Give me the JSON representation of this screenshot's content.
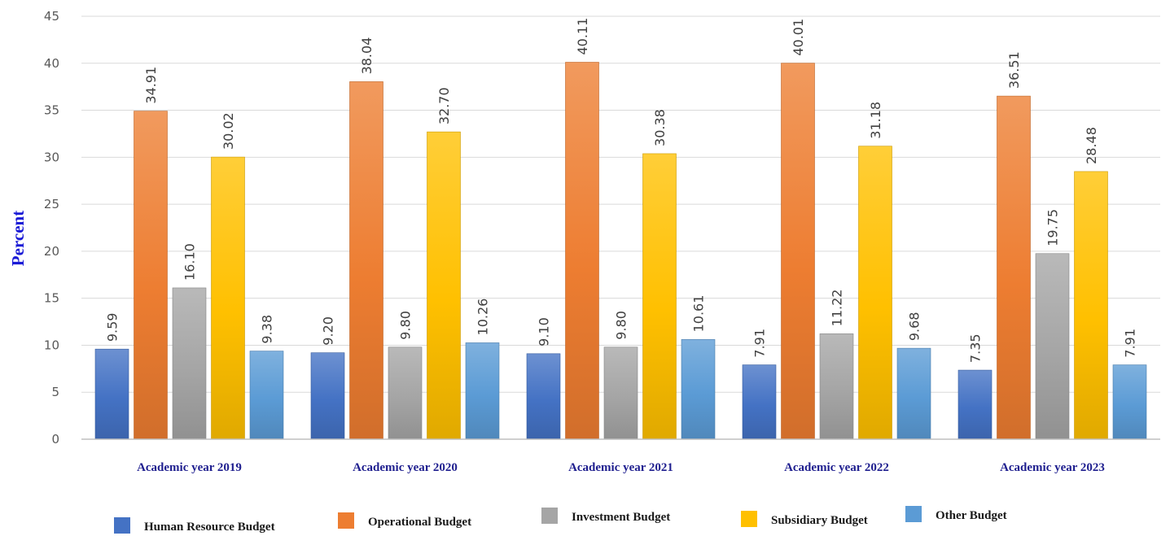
{
  "chart_data": {
    "type": "bar",
    "title": "",
    "xlabel": "",
    "ylabel": "Percent",
    "ylim": [
      0,
      45
    ],
    "yticks": [
      0,
      5,
      10,
      15,
      20,
      25,
      30,
      35,
      40,
      45
    ],
    "grid": true,
    "legend_position": "bottom",
    "categories": [
      "Academic year 2019",
      "Academic year 2020",
      "Academic year 2021",
      "Academic year 2022",
      "Academic year 2023"
    ],
    "series": [
      {
        "name": "Human Resource Budget",
        "color": "#4472c4",
        "values": [
          9.59,
          9.2,
          9.1,
          7.91,
          7.35
        ],
        "labels": [
          "9.59",
          "9.20",
          "9.10",
          "7.91",
          "7.35"
        ]
      },
      {
        "name": "Operational Budget",
        "color": "#ed7d31",
        "values": [
          34.91,
          38.04,
          40.11,
          40.01,
          36.51
        ],
        "labels": [
          "34.91",
          "38.04",
          "40.11",
          "40.01",
          "36.51"
        ]
      },
      {
        "name": "Investment Budget",
        "color": "#a5a5a5",
        "values": [
          16.1,
          9.8,
          9.8,
          11.22,
          19.75
        ],
        "labels": [
          "16.10",
          "9.80",
          "9.80",
          "11.22",
          "19.75"
        ]
      },
      {
        "name": "Subsidiary Budget",
        "color": "#ffc000",
        "values": [
          30.02,
          32.7,
          30.38,
          31.18,
          28.48
        ],
        "labels": [
          "30.02",
          "32.70",
          "30.38",
          "31.18",
          "28.48"
        ]
      },
      {
        "name": "Other Budget",
        "color": "#5b9bd5",
        "values": [
          9.38,
          10.26,
          10.61,
          9.68,
          7.91
        ],
        "labels": [
          "9.38",
          "10.26",
          "10.61",
          "9.68",
          "7.91"
        ]
      }
    ]
  }
}
